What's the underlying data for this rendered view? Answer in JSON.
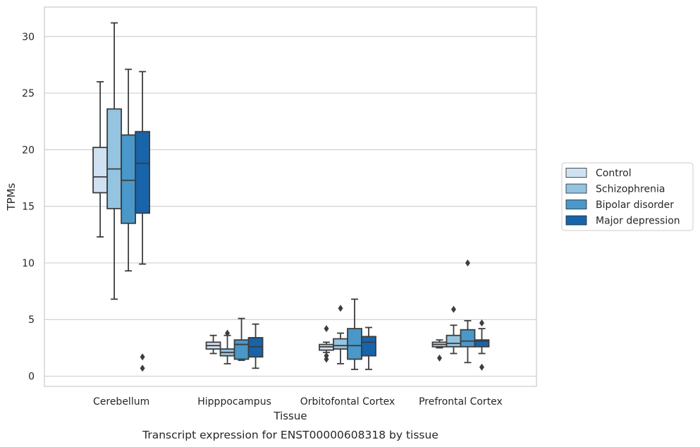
{
  "chart_data": {
    "type": "box",
    "caption": "Transcript expression for ENST00000608318 by tissue",
    "xlabel": "Tissue",
    "ylabel": "TPMs",
    "ylim": [
      -0.9,
      32.6
    ],
    "yticks": [
      0,
      5,
      10,
      15,
      20,
      25,
      30
    ],
    "grid": "horizontal",
    "legend_placement": "right",
    "categories": [
      "Cerebellum",
      "Hipppocampus",
      "Orbitofontal Cortex",
      "Prefrontal Cortex"
    ],
    "series": [
      {
        "name": "Control",
        "color": "#d0e1f2",
        "boxes": [
          {
            "whislo": 12.3,
            "q1": 16.2,
            "med": 17.6,
            "q3": 20.2,
            "whishi": 26.0,
            "fliers": []
          },
          {
            "whislo": 2.0,
            "q1": 2.4,
            "med": 2.7,
            "q3": 3.0,
            "whishi": 3.6,
            "fliers": []
          },
          {
            "whislo": 2.1,
            "q1": 2.3,
            "med": 2.6,
            "q3": 2.8,
            "whishi": 3.0,
            "fliers": [
              4.2,
              1.8,
              1.5
            ]
          },
          {
            "whislo": 2.5,
            "q1": 2.6,
            "med": 2.8,
            "q3": 3.0,
            "whishi": 3.2,
            "fliers": [
              1.6
            ]
          }
        ]
      },
      {
        "name": "Schizophrenia",
        "color": "#94c4df",
        "boxes": [
          {
            "whislo": 6.8,
            "q1": 14.8,
            "med": 18.3,
            "q3": 23.6,
            "whishi": 31.2,
            "fliers": []
          },
          {
            "whislo": 1.1,
            "q1": 1.8,
            "med": 2.1,
            "q3": 2.4,
            "whishi": 3.6,
            "fliers": [
              3.8
            ]
          },
          {
            "whislo": 1.1,
            "q1": 2.4,
            "med": 2.7,
            "q3": 3.3,
            "whishi": 3.8,
            "fliers": [
              6.0
            ]
          },
          {
            "whislo": 2.0,
            "q1": 2.6,
            "med": 2.9,
            "q3": 3.6,
            "whishi": 4.5,
            "fliers": [
              5.9
            ]
          }
        ]
      },
      {
        "name": "Bipolar disorder",
        "color": "#4a98c9",
        "boxes": [
          {
            "whislo": 9.3,
            "q1": 13.5,
            "med": 17.3,
            "q3": 21.3,
            "whishi": 27.1,
            "fliers": []
          },
          {
            "whislo": 1.4,
            "q1": 1.5,
            "med": 2.8,
            "q3": 3.2,
            "whishi": 5.1,
            "fliers": []
          },
          {
            "whislo": 0.6,
            "q1": 1.5,
            "med": 2.7,
            "q3": 4.2,
            "whishi": 6.8,
            "fliers": []
          },
          {
            "whislo": 1.2,
            "q1": 2.6,
            "med": 3.1,
            "q3": 4.1,
            "whishi": 4.9,
            "fliers": [
              10.0
            ]
          }
        ]
      },
      {
        "name": "Major depression",
        "color": "#1764ab",
        "boxes": [
          {
            "whislo": 9.9,
            "q1": 14.4,
            "med": 18.8,
            "q3": 21.6,
            "whishi": 26.9,
            "fliers": [
              1.7,
              0.7
            ]
          },
          {
            "whislo": 0.7,
            "q1": 1.7,
            "med": 2.6,
            "q3": 3.4,
            "whishi": 4.6,
            "fliers": []
          },
          {
            "whislo": 0.6,
            "q1": 1.8,
            "med": 3.0,
            "q3": 3.5,
            "whishi": 4.3,
            "fliers": []
          },
          {
            "whislo": 2.0,
            "q1": 2.6,
            "med": 3.1,
            "q3": 3.2,
            "whishi": 4.2,
            "fliers": [
              4.7,
              0.8
            ]
          }
        ]
      }
    ]
  }
}
